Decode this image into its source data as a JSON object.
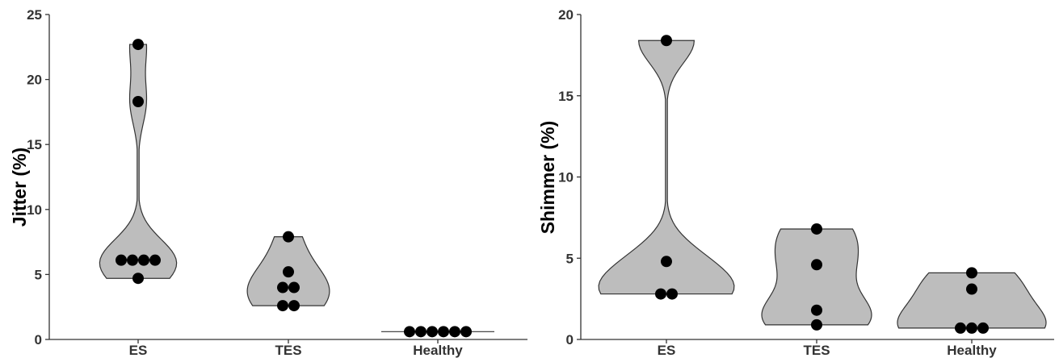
{
  "chart_data": [
    {
      "type": "violin",
      "ylabel": "Jitter (%)",
      "xlabel": "",
      "categories": [
        "ES",
        "TES",
        "Healthy"
      ],
      "ylim": [
        0,
        25
      ],
      "yticks": [
        0,
        5,
        10,
        15,
        20,
        25
      ],
      "grid": false,
      "points": [
        {
          "category": "ES",
          "values": [
            22.7,
            18.3,
            6.1,
            6.1,
            6.1,
            6.1,
            4.7
          ]
        },
        {
          "category": "TES",
          "values": [
            7.9,
            5.2,
            4.0,
            4.0,
            2.6,
            2.6
          ]
        },
        {
          "category": "Healthy",
          "values": [
            0.6,
            0.6,
            0.6,
            0.6,
            0.6,
            0.6
          ]
        }
      ],
      "colors": {
        "violin_fill": "#bdbdbd",
        "violin_stroke": "#333333",
        "point": "#000000"
      }
    },
    {
      "type": "violin",
      "ylabel": "Shimmer (%)",
      "xlabel": "",
      "categories": [
        "ES",
        "TES",
        "Healthy"
      ],
      "ylim": [
        0,
        20
      ],
      "yticks": [
        0,
        5,
        10,
        15,
        20
      ],
      "grid": false,
      "points": [
        {
          "category": "ES",
          "values": [
            18.4,
            4.8,
            2.8,
            2.8
          ]
        },
        {
          "category": "TES",
          "values": [
            6.8,
            4.6,
            1.8,
            0.9
          ]
        },
        {
          "category": "Healthy",
          "values": [
            4.1,
            3.1,
            0.7,
            0.7,
            0.7
          ]
        }
      ],
      "colors": {
        "violin_fill": "#bdbdbd",
        "violin_stroke": "#333333",
        "point": "#000000"
      }
    }
  ]
}
